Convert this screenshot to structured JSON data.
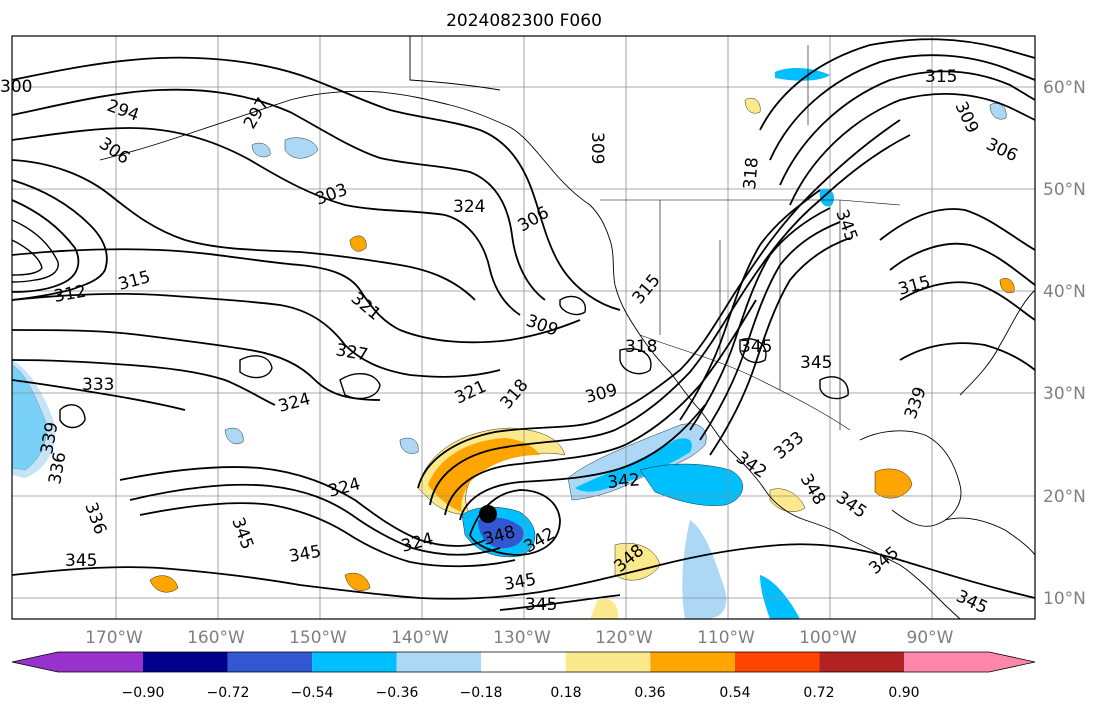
{
  "title": "2024082300 F060",
  "map": {
    "lon_ticks": [
      "170°W",
      "160°W",
      "150°W",
      "140°W",
      "130°W",
      "120°W",
      "110°W",
      "100°W",
      "90°W"
    ],
    "lat_ticks": [
      "60°N",
      "50°N",
      "40°N",
      "30°N",
      "20°N",
      "10°N"
    ],
    "contour_labels": [
      "294",
      "297",
      "300",
      "303",
      "306",
      "309",
      "312",
      "315",
      "318",
      "321",
      "324",
      "327",
      "333",
      "336",
      "339",
      "342",
      "345",
      "348"
    ],
    "storm_center_marker": "black-circle"
  },
  "colorbar": {
    "ticks": [
      "−0.90",
      "−0.72",
      "−0.54",
      "−0.36",
      "−0.18",
      "0.18",
      "0.36",
      "0.54",
      "0.72",
      "0.90"
    ],
    "colors": [
      "#9932cc",
      "#00008b",
      "#3158d0",
      "#00bfff",
      "#add8f5",
      "#ffffff",
      "#fce98c",
      "#ffa500",
      "#ff4500",
      "#b22222",
      "#ff88aa"
    ]
  }
}
